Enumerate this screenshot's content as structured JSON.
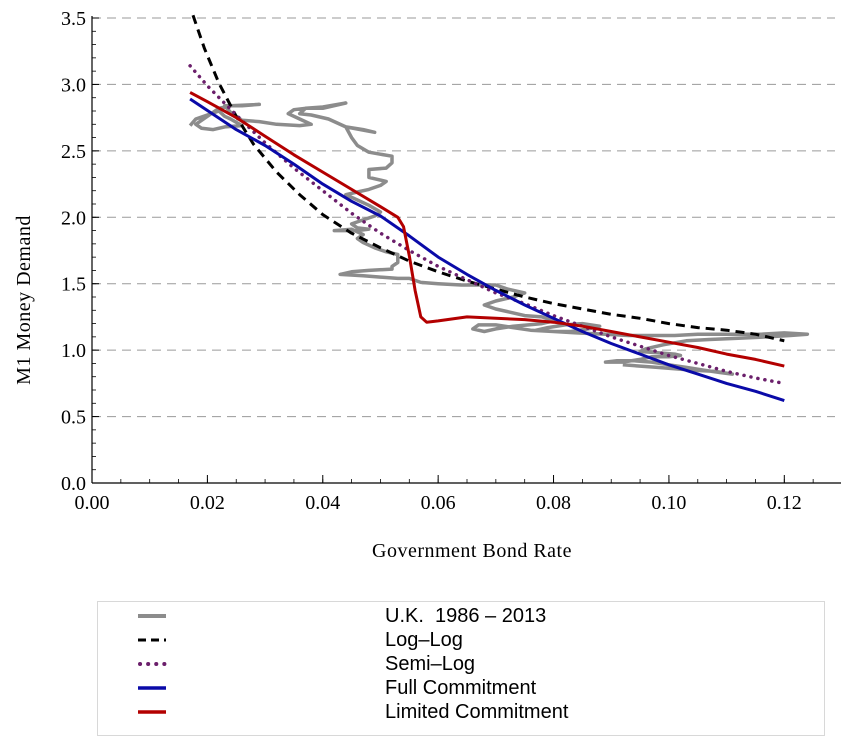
{
  "chart_data": {
    "type": "line",
    "xlabel": "Government  Bond  Rate",
    "ylabel": "M1  Money  Demand",
    "xlim": [
      0.0,
      0.13
    ],
    "ylim": [
      0.0,
      3.5
    ],
    "x_ticks": [
      "0.00",
      "0.02",
      "0.04",
      "0.06",
      "0.08",
      "0.10",
      "0.12"
    ],
    "y_ticks": [
      "0.0",
      "0.5",
      "1.0",
      "1.5",
      "2.0",
      "2.5",
      "3.0",
      "3.5"
    ],
    "y_grid": "dashed horizontal at each y tick",
    "legend_position": "below chart",
    "series": [
      {
        "name": "U.K.  1986 – 2013",
        "style": "solid",
        "color": "#8c8c8c",
        "points": [
          [
            0.017,
            2.69
          ],
          [
            0.018,
            2.74
          ],
          [
            0.022,
            2.8
          ],
          [
            0.023,
            2.76
          ],
          [
            0.024,
            2.74
          ],
          [
            0.026,
            2.69
          ],
          [
            0.023,
            2.68
          ],
          [
            0.021,
            2.66
          ],
          [
            0.019,
            2.67
          ],
          [
            0.018,
            2.7
          ],
          [
            0.02,
            2.76
          ],
          [
            0.022,
            2.82
          ],
          [
            0.024,
            2.84
          ],
          [
            0.029,
            2.85
          ],
          [
            0.026,
            2.84
          ],
          [
            0.023,
            2.84
          ],
          [
            0.024,
            2.79
          ],
          [
            0.026,
            2.73
          ],
          [
            0.029,
            2.72
          ],
          [
            0.032,
            2.7
          ],
          [
            0.036,
            2.69
          ],
          [
            0.038,
            2.7
          ],
          [
            0.036,
            2.74
          ],
          [
            0.034,
            2.78
          ],
          [
            0.035,
            2.81
          ],
          [
            0.037,
            2.82
          ],
          [
            0.04,
            2.82
          ],
          [
            0.042,
            2.84
          ],
          [
            0.044,
            2.86
          ],
          [
            0.04,
            2.83
          ],
          [
            0.037,
            2.82
          ],
          [
            0.036,
            2.78
          ],
          [
            0.038,
            2.77
          ],
          [
            0.041,
            2.74
          ],
          [
            0.044,
            2.68
          ],
          [
            0.049,
            2.64
          ],
          [
            0.047,
            2.66
          ],
          [
            0.044,
            2.68
          ],
          [
            0.045,
            2.6
          ],
          [
            0.046,
            2.54
          ],
          [
            0.048,
            2.49
          ],
          [
            0.052,
            2.46
          ],
          [
            0.052,
            2.41
          ],
          [
            0.051,
            2.37
          ],
          [
            0.048,
            2.36
          ],
          [
            0.048,
            2.3
          ],
          [
            0.051,
            2.27
          ],
          [
            0.05,
            2.24
          ],
          [
            0.048,
            2.21
          ],
          [
            0.046,
            2.19
          ],
          [
            0.044,
            2.17
          ],
          [
            0.046,
            2.13
          ],
          [
            0.048,
            2.09
          ],
          [
            0.05,
            2.04
          ],
          [
            0.049,
            2.01
          ],
          [
            0.047,
            1.98
          ],
          [
            0.045,
            1.95
          ],
          [
            0.046,
            1.92
          ],
          [
            0.048,
            1.91
          ],
          [
            0.046,
            1.9
          ],
          [
            0.042,
            1.9
          ],
          [
            0.045,
            1.91
          ],
          [
            0.047,
            1.87
          ],
          [
            0.046,
            1.84
          ],
          [
            0.047,
            1.81
          ],
          [
            0.049,
            1.77
          ],
          [
            0.051,
            1.74
          ],
          [
            0.053,
            1.72
          ],
          [
            0.053,
            1.66
          ],
          [
            0.052,
            1.63
          ],
          [
            0.052,
            1.61
          ],
          [
            0.048,
            1.6
          ],
          [
            0.045,
            1.59
          ],
          [
            0.043,
            1.57
          ],
          [
            0.047,
            1.56
          ],
          [
            0.05,
            1.55
          ],
          [
            0.053,
            1.54
          ],
          [
            0.055,
            1.54
          ],
          [
            0.057,
            1.51
          ],
          [
            0.06,
            1.5
          ],
          [
            0.064,
            1.49
          ],
          [
            0.068,
            1.49
          ],
          [
            0.07,
            1.49
          ],
          [
            0.072,
            1.46
          ],
          [
            0.075,
            1.43
          ],
          [
            0.073,
            1.4
          ],
          [
            0.07,
            1.37
          ],
          [
            0.068,
            1.34
          ],
          [
            0.07,
            1.31
          ],
          [
            0.073,
            1.28
          ],
          [
            0.075,
            1.26
          ],
          [
            0.078,
            1.25
          ],
          [
            0.08,
            1.22
          ],
          [
            0.078,
            1.2
          ],
          [
            0.073,
            1.18
          ],
          [
            0.07,
            1.16
          ],
          [
            0.068,
            1.14
          ],
          [
            0.066,
            1.16
          ],
          [
            0.067,
            1.19
          ],
          [
            0.07,
            1.19
          ],
          [
            0.073,
            1.17
          ],
          [
            0.076,
            1.15
          ],
          [
            0.08,
            1.14
          ],
          [
            0.083,
            1.14
          ],
          [
            0.086,
            1.16
          ],
          [
            0.088,
            1.18
          ],
          [
            0.085,
            1.2
          ],
          [
            0.082,
            1.19
          ],
          [
            0.079,
            1.17
          ],
          [
            0.077,
            1.15
          ],
          [
            0.08,
            1.14
          ],
          [
            0.084,
            1.13
          ],
          [
            0.089,
            1.12
          ],
          [
            0.093,
            1.11
          ],
          [
            0.097,
            1.11
          ],
          [
            0.101,
            1.11
          ],
          [
            0.105,
            1.12
          ],
          [
            0.108,
            1.12
          ],
          [
            0.112,
            1.12
          ],
          [
            0.116,
            1.12
          ],
          [
            0.12,
            1.13
          ],
          [
            0.124,
            1.12
          ],
          [
            0.121,
            1.11
          ],
          [
            0.117,
            1.1
          ],
          [
            0.112,
            1.09
          ],
          [
            0.107,
            1.08
          ],
          [
            0.103,
            1.07
          ],
          [
            0.099,
            1.04
          ],
          [
            0.096,
            1.01
          ],
          [
            0.095,
            0.99
          ],
          [
            0.098,
            0.98
          ],
          [
            0.101,
            0.97
          ],
          [
            0.102,
            0.96
          ],
          [
            0.1,
            0.95
          ],
          [
            0.097,
            0.95
          ],
          [
            0.095,
            0.93
          ],
          [
            0.092,
            0.91
          ],
          [
            0.089,
            0.91
          ],
          [
            0.091,
            0.92
          ],
          [
            0.094,
            0.92
          ],
          [
            0.097,
            0.91
          ],
          [
            0.1,
            0.89
          ],
          [
            0.103,
            0.87
          ],
          [
            0.106,
            0.85
          ],
          [
            0.109,
            0.83
          ],
          [
            0.111,
            0.82
          ],
          [
            0.108,
            0.84
          ],
          [
            0.104,
            0.85
          ],
          [
            0.101,
            0.86
          ],
          [
            0.098,
            0.87
          ],
          [
            0.095,
            0.88
          ],
          [
            0.092,
            0.89
          ]
        ]
      },
      {
        "name": "Log–Log",
        "style": "dashed",
        "color": "#000000",
        "points": [
          [
            0.0175,
            3.52
          ],
          [
            0.0195,
            3.27
          ],
          [
            0.022,
            3.01
          ],
          [
            0.025,
            2.76
          ],
          [
            0.028,
            2.55
          ],
          [
            0.032,
            2.34
          ],
          [
            0.036,
            2.17
          ],
          [
            0.04,
            2.02
          ],
          [
            0.045,
            1.88
          ],
          [
            0.05,
            1.77
          ],
          [
            0.055,
            1.67
          ],
          [
            0.06,
            1.59
          ],
          [
            0.065,
            1.52
          ],
          [
            0.07,
            1.46
          ],
          [
            0.075,
            1.4
          ],
          [
            0.08,
            1.35
          ],
          [
            0.085,
            1.31
          ],
          [
            0.09,
            1.27
          ],
          [
            0.095,
            1.24
          ],
          [
            0.1,
            1.2
          ],
          [
            0.105,
            1.17
          ],
          [
            0.11,
            1.15
          ],
          [
            0.115,
            1.12
          ],
          [
            0.12,
            1.07
          ]
        ]
      },
      {
        "name": "Semi–Log",
        "style": "dotted",
        "color": "#6b1f6b",
        "points": [
          [
            0.017,
            3.14
          ],
          [
            0.02,
            2.99
          ],
          [
            0.025,
            2.77
          ],
          [
            0.03,
            2.56
          ],
          [
            0.035,
            2.37
          ],
          [
            0.04,
            2.2
          ],
          [
            0.045,
            2.03
          ],
          [
            0.05,
            1.88
          ],
          [
            0.055,
            1.75
          ],
          [
            0.06,
            1.63
          ],
          [
            0.065,
            1.53
          ],
          [
            0.07,
            1.43
          ],
          [
            0.075,
            1.35
          ],
          [
            0.08,
            1.26
          ],
          [
            0.085,
            1.18
          ],
          [
            0.09,
            1.1
          ],
          [
            0.095,
            1.03
          ],
          [
            0.1,
            0.96
          ],
          [
            0.105,
            0.9
          ],
          [
            0.11,
            0.84
          ],
          [
            0.115,
            0.79
          ],
          [
            0.12,
            0.75
          ]
        ]
      },
      {
        "name": "Full Commitment",
        "style": "solid",
        "color": "#0a0aa8",
        "points": [
          [
            0.017,
            2.89
          ],
          [
            0.025,
            2.66
          ],
          [
            0.03,
            2.54
          ],
          [
            0.035,
            2.4
          ],
          [
            0.04,
            2.25
          ],
          [
            0.045,
            2.12
          ],
          [
            0.05,
            2.01
          ],
          [
            0.055,
            1.86
          ],
          [
            0.06,
            1.7
          ],
          [
            0.065,
            1.57
          ],
          [
            0.07,
            1.45
          ],
          [
            0.075,
            1.34
          ],
          [
            0.08,
            1.24
          ],
          [
            0.085,
            1.14
          ],
          [
            0.09,
            1.05
          ],
          [
            0.095,
            0.97
          ],
          [
            0.1,
            0.89
          ],
          [
            0.105,
            0.82
          ],
          [
            0.11,
            0.75
          ],
          [
            0.115,
            0.69
          ],
          [
            0.12,
            0.62
          ]
        ]
      },
      {
        "name": "Limited Commitment",
        "style": "solid",
        "color": "#b30000",
        "points": [
          [
            0.017,
            2.94
          ],
          [
            0.02,
            2.87
          ],
          [
            0.025,
            2.75
          ],
          [
            0.03,
            2.61
          ],
          [
            0.035,
            2.47
          ],
          [
            0.04,
            2.34
          ],
          [
            0.045,
            2.21
          ],
          [
            0.05,
            2.08
          ],
          [
            0.053,
            2.0
          ],
          [
            0.054,
            1.93
          ],
          [
            0.055,
            1.71
          ],
          [
            0.056,
            1.45
          ],
          [
            0.057,
            1.25
          ],
          [
            0.058,
            1.21
          ],
          [
            0.06,
            1.22
          ],
          [
            0.065,
            1.25
          ],
          [
            0.07,
            1.24
          ],
          [
            0.075,
            1.23
          ],
          [
            0.08,
            1.21
          ],
          [
            0.085,
            1.18
          ],
          [
            0.09,
            1.14
          ],
          [
            0.095,
            1.1
          ],
          [
            0.1,
            1.06
          ],
          [
            0.105,
            1.02
          ],
          [
            0.11,
            0.97
          ],
          [
            0.115,
            0.93
          ],
          [
            0.12,
            0.88
          ]
        ]
      }
    ]
  }
}
